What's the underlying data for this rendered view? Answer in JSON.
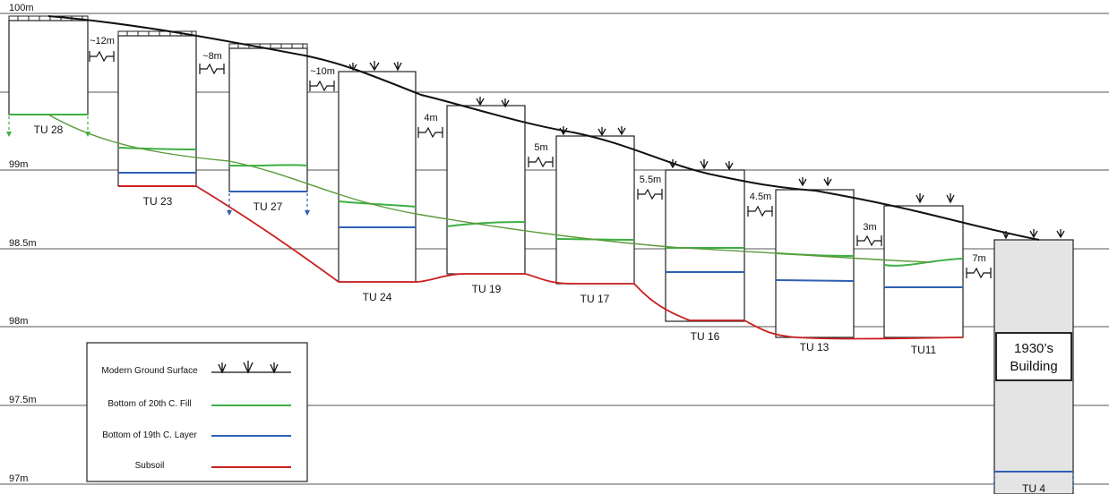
{
  "elevations": [
    "100m",
    "99m",
    "98.5m",
    "98m",
    "97.5m",
    "97m"
  ],
  "units": [
    {
      "label": "TU 28"
    },
    {
      "label": "TU 23"
    },
    {
      "label": "TU 27"
    },
    {
      "label": "TU 24"
    },
    {
      "label": "TU 19"
    },
    {
      "label": "TU 17"
    },
    {
      "label": "TU 16"
    },
    {
      "label": "TU 13"
    },
    {
      "label": "TU11"
    },
    {
      "label": "TU 4"
    }
  ],
  "distances": [
    "~12m",
    "~8m",
    "~10m",
    "4m",
    "5m",
    "5.5m",
    "4.5m",
    "3m",
    "7m"
  ],
  "building": {
    "line1": "1930’s",
    "line2": "Building"
  },
  "legend": [
    {
      "label": "Modern Ground Surface",
      "color": "#111111"
    },
    {
      "label": "Bottom of 20th C. Fill",
      "color": "#3cb043"
    },
    {
      "label": "Bottom of 19th C. Layer",
      "color": "#2f5fb3"
    },
    {
      "label": "Subsoil",
      "color": "#cc1f1f"
    }
  ],
  "colors": {
    "fill": "#3cb043",
    "fill_trend": "#5a9a3a",
    "layer19": "#2f5fb3",
    "subsoil": "#cc1f1f",
    "ground": "#111111",
    "building": "#e4e4e4"
  }
}
